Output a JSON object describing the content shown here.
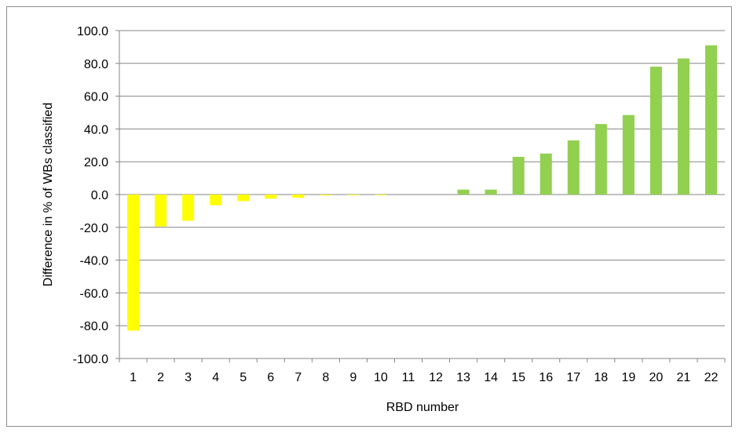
{
  "chart_data": {
    "type": "bar",
    "title": "",
    "xlabel": "RBD number",
    "ylabel": "Difference in % of WBs classified",
    "categories": [
      "1",
      "2",
      "3",
      "4",
      "5",
      "6",
      "7",
      "8",
      "9",
      "10",
      "11",
      "12",
      "13",
      "14",
      "15",
      "16",
      "17",
      "18",
      "19",
      "20",
      "21",
      "22"
    ],
    "values": [
      -83.0,
      -19.5,
      -16.0,
      -6.5,
      -4.0,
      -2.5,
      -2.0,
      -0.5,
      -0.3,
      -0.2,
      0.0,
      0.0,
      3.0,
      3.0,
      23.0,
      25.0,
      33.0,
      43.0,
      48.5,
      78.0,
      83.0,
      91.0
    ],
    "ylim": [
      -100,
      100
    ],
    "yticks": [
      "100.0",
      "80.0",
      "60.0",
      "40.0",
      "20.0",
      "0.0",
      "-20.0",
      "-40.0",
      "-60.0",
      "-80.0",
      "-100.0"
    ],
    "grid": true,
    "legend": "none",
    "colors": {
      "negative": "#ffff00",
      "positive": "#92d050",
      "gridline": "#868686",
      "axis": "#868686"
    }
  }
}
